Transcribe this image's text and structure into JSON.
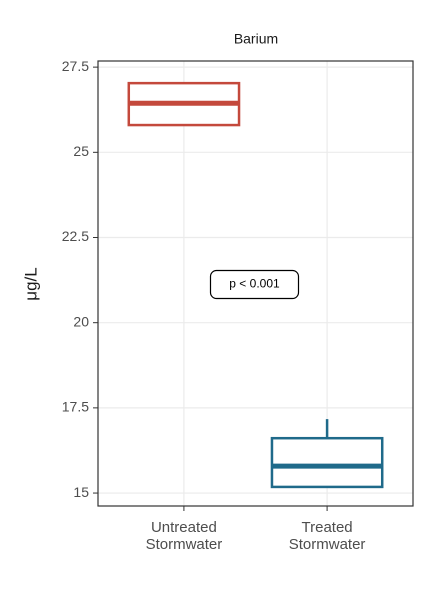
{
  "chart_data": {
    "type": "box",
    "title": "Barium",
    "y_label": "μg/L",
    "categories": [
      "Untreated Stormwater",
      "Treated Stormwater"
    ],
    "boxes": [
      {
        "min": 25.8,
        "q1": 25.8,
        "median": 26.44,
        "q3": 27.03,
        "max": 27.05,
        "color": "#c4493c"
      },
      {
        "min": 15.18,
        "q1": 15.18,
        "median": 15.79,
        "q3": 16.61,
        "max": 17.17,
        "color": "#1f6a8a"
      }
    ],
    "annotation": "p < 0.001",
    "ylim": [
      14.62,
      27.68
    ],
    "yticks": [
      15.0,
      17.5,
      20.0,
      22.5,
      25.0,
      27.5
    ],
    "grid": true
  }
}
